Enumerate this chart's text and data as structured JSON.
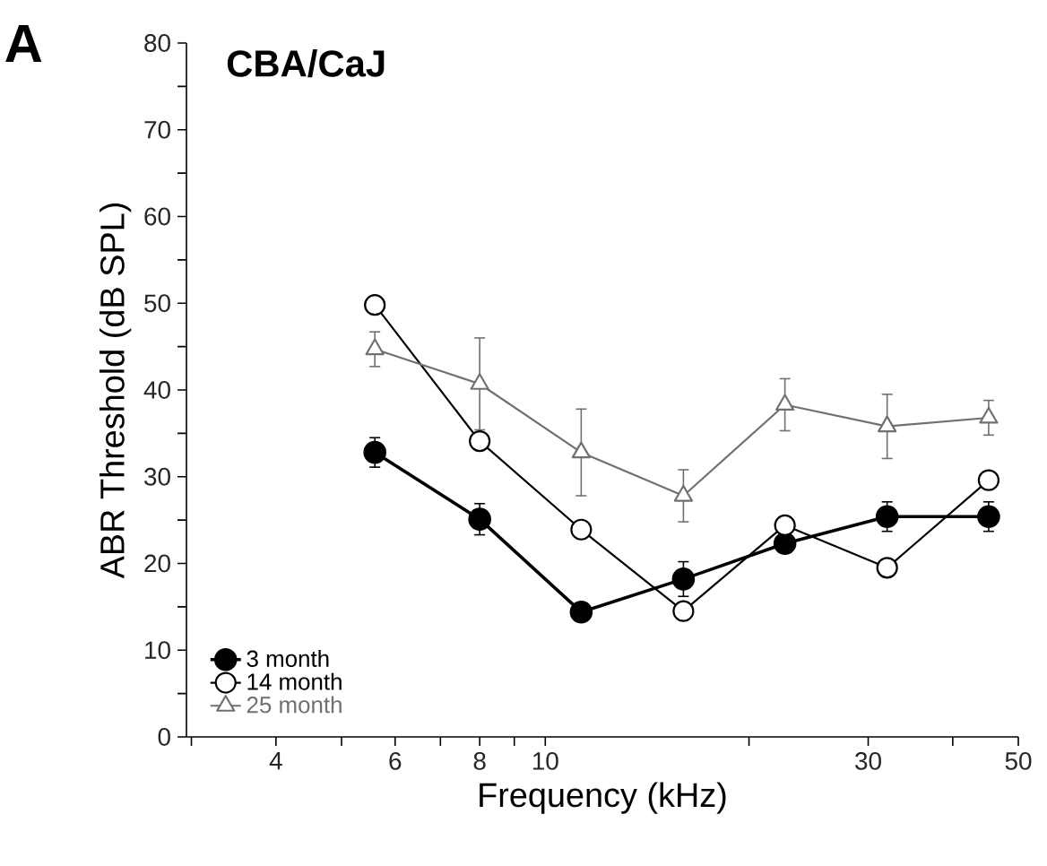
{
  "chart_data": {
    "type": "line",
    "title": "CBA/CaJ",
    "annotations": [
      "A"
    ],
    "xlabel": "Frequency (kHz)",
    "ylabel": "ABR Threshold (dB SPL)",
    "log": "x",
    "xlim": [
      2.95,
      50
    ],
    "xticks": [
      {
        "value": 3,
        "label": null
      },
      4,
      {
        "value": 5,
        "label": null
      },
      6,
      {
        "value": 7,
        "label": null
      },
      8,
      {
        "value": 9,
        "label": null
      },
      10,
      {
        "value": 20,
        "label": null
      },
      30,
      {
        "value": 40,
        "label": null
      },
      50
    ],
    "ylim": [
      0,
      80
    ],
    "yticks": [
      0,
      {
        "value": 5,
        "label": null
      },
      10,
      {
        "value": 15,
        "label": null
      },
      20,
      {
        "value": 25,
        "label": null
      },
      30,
      {
        "value": 35,
        "label": null
      },
      40,
      {
        "value": 45,
        "label": null
      },
      50,
      {
        "value": 55,
        "label": null
      },
      60,
      {
        "value": 65,
        "label": null
      },
      70,
      {
        "value": 75,
        "label": null
      },
      80
    ],
    "x": [
      5.6,
      8,
      11.3,
      16,
      22.6,
      32,
      45.2
    ],
    "legend": "bottom left",
    "grid": false,
    "line_style": "solid",
    "series": [
      {
        "name": "3 month",
        "color": "#000000",
        "marker": "circle",
        "values": [
          32.8,
          25.1,
          14.4,
          18.2,
          22.3,
          25.4,
          25.4
        ],
        "errors": [
          1.7,
          1.8,
          1,
          2,
          1,
          1.7,
          1.7
        ]
      },
      {
        "name": "14 month",
        "color": "#000000",
        "marker": "circle",
        "values": [
          49.8,
          34.1,
          23.9,
          14.5,
          24.4,
          19.5,
          29.6
        ]
      },
      {
        "name": "25 month",
        "color": "#707070",
        "marker": "triangle",
        "values": [
          44.7,
          40.7,
          32.8,
          27.8,
          38.3,
          35.8,
          36.8
        ],
        "errors": [
          2,
          5.3,
          5,
          3,
          3,
          3.7,
          2
        ]
      }
    ]
  }
}
